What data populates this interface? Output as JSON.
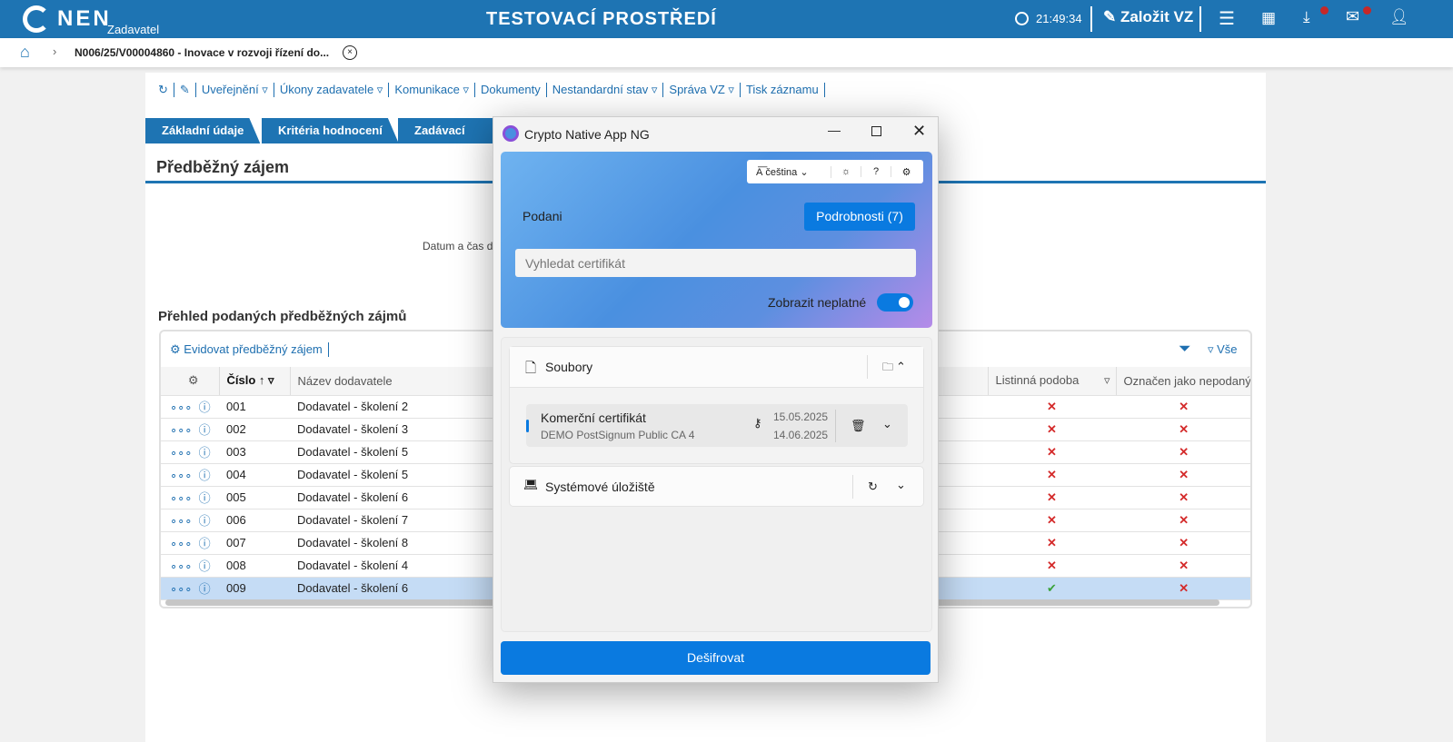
{
  "header": {
    "logo": "NEN",
    "role": "Zadavatel",
    "env_title": "TESTOVACÍ PROSTŘEDÍ",
    "clock": "21:49:34",
    "create_label": "Založit VZ"
  },
  "breadcrumb": {
    "current": "N006/25/V00004860 - Inovace v rozvoji řízení do..."
  },
  "toolbar": {
    "items": [
      "Uveřejnění ▿",
      "Úkony zadavatele ▿",
      "Komunikace ▿",
      "Dokumenty",
      "Nestandardní stav ▿",
      "Správa VZ ▿",
      "Tisk záznamu"
    ]
  },
  "tabs": [
    "Základní údaje",
    "Kritéria hodnocení",
    "Zadávací podm"
  ],
  "section": {
    "title": "Předběžný zájem",
    "date_label": "Datum a čas d",
    "subtitle": "Přehled podaných předběžných zájmů",
    "add_label": "Evidovat předběžný zájem",
    "all_label": "Vše"
  },
  "table": {
    "columns": [
      "Číslo",
      "Název dodavatele",
      "Listinná podoba",
      "Označen jako nepodaný"
    ],
    "rows": [
      {
        "num": "001",
        "name": "Dodavatel - školení 2",
        "paper": false,
        "unsubmitted": false
      },
      {
        "num": "002",
        "name": "Dodavatel - školení 3",
        "paper": false,
        "unsubmitted": false
      },
      {
        "num": "003",
        "name": "Dodavatel - školení 5",
        "paper": false,
        "unsubmitted": false
      },
      {
        "num": "004",
        "name": "Dodavatel - školení 5",
        "paper": false,
        "unsubmitted": false
      },
      {
        "num": "005",
        "name": "Dodavatel - školení 6",
        "paper": false,
        "unsubmitted": false
      },
      {
        "num": "006",
        "name": "Dodavatel - školení 7",
        "paper": false,
        "unsubmitted": false
      },
      {
        "num": "007",
        "name": "Dodavatel - školení 8",
        "paper": false,
        "unsubmitted": false
      },
      {
        "num": "008",
        "name": "Dodavatel - školení 4",
        "paper": false,
        "unsubmitted": false
      },
      {
        "num": "009",
        "name": "Dodavatel - školení 6",
        "paper": true,
        "unsubmitted": false,
        "selected": true
      }
    ]
  },
  "dialog": {
    "title": "Crypto Native App NG",
    "language": "čeština",
    "podani_label": "Podani",
    "details_button": "Podrobnosti (7)",
    "search_placeholder": "Vyhledat certifikát",
    "show_invalid_label": "Zobrazit neplatné",
    "show_invalid": true,
    "files_title": "Soubory",
    "cert_name": "Komerční certifikát",
    "cert_issuer": "DEMO PostSignum Public CA 4",
    "valid_from": "15.05.2025",
    "valid_to": "14.06.2025",
    "system_store": "Systémové úložiště",
    "decrypt_button": "Dešifrovat"
  },
  "colors": {
    "brand": "#1e74b3",
    "accent": "#0a7ae0",
    "error": "#d42a2a",
    "success": "#3aa23a"
  }
}
